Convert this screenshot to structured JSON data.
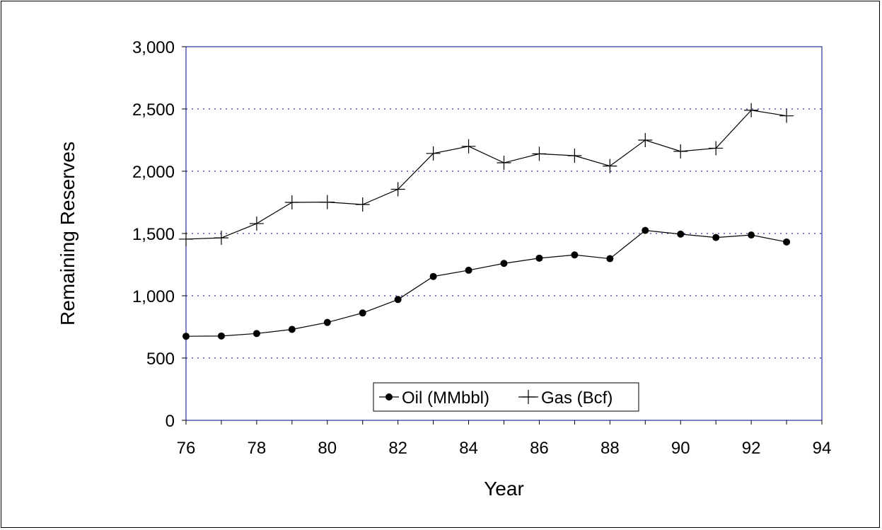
{
  "chart_data": {
    "type": "line",
    "title": "",
    "xlabel": "Year",
    "ylabel": "Remaining Reserves",
    "xlim": [
      76,
      94
    ],
    "ylim": [
      0,
      3000
    ],
    "x_ticks": [
      76,
      78,
      80,
      82,
      84,
      86,
      88,
      90,
      92,
      94
    ],
    "y_ticks": [
      0,
      500,
      1000,
      1500,
      2000,
      2500,
      3000
    ],
    "y_tick_labels": [
      "0",
      "500",
      "1,000",
      "1,500",
      "2,000",
      "2,500",
      "3,000"
    ],
    "grid": "horizontal dotted",
    "legend_position": "bottom-center",
    "x": [
      76,
      77,
      78,
      79,
      80,
      81,
      82,
      83,
      84,
      85,
      86,
      87,
      88,
      89,
      90,
      91,
      92,
      93
    ],
    "series": [
      {
        "name": "Oil (MMbbl)",
        "marker": "circle",
        "values": [
          675,
          677,
          697,
          730,
          786,
          862,
          970,
          1155,
          1205,
          1260,
          1302,
          1328,
          1298,
          1525,
          1495,
          1468,
          1488,
          1432
        ]
      },
      {
        "name": "Gas (Bcf)",
        "marker": "plus",
        "values": [
          1455,
          1465,
          1580,
          1750,
          1752,
          1733,
          1855,
          2143,
          2200,
          2068,
          2140,
          2125,
          2042,
          2250,
          2160,
          2185,
          2490,
          2445
        ]
      }
    ],
    "colors": {
      "line": "#000000",
      "axis_box": "#00008b",
      "grid": "#00008b"
    }
  }
}
